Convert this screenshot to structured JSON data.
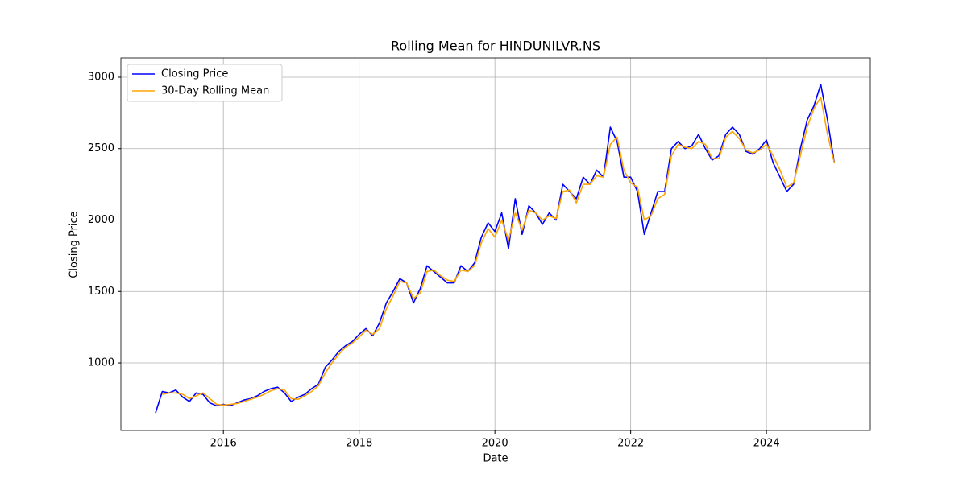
{
  "chart_data": {
    "type": "line",
    "title": "Rolling Mean for HINDUNILVR.NS",
    "x_label": "Date",
    "y_label": "Closing Price",
    "x": [
      2015.0,
      2015.1,
      2015.2,
      2015.3,
      2015.4,
      2015.5,
      2015.6,
      2015.7,
      2015.8,
      2015.9,
      2016.0,
      2016.1,
      2016.2,
      2016.3,
      2016.4,
      2016.5,
      2016.6,
      2016.7,
      2016.8,
      2016.9,
      2017.0,
      2017.1,
      2017.2,
      2017.3,
      2017.4,
      2017.5,
      2017.6,
      2017.7,
      2017.8,
      2017.9,
      2018.0,
      2018.1,
      2018.2,
      2018.3,
      2018.4,
      2018.5,
      2018.6,
      2018.7,
      2018.8,
      2018.9,
      2019.0,
      2019.1,
      2019.2,
      2019.3,
      2019.4,
      2019.5,
      2019.6,
      2019.7,
      2019.8,
      2019.9,
      2020.0,
      2020.1,
      2020.2,
      2020.3,
      2020.4,
      2020.5,
      2020.6,
      2020.7,
      2020.8,
      2020.9,
      2021.0,
      2021.1,
      2021.2,
      2021.3,
      2021.4,
      2021.5,
      2021.6,
      2021.7,
      2021.8,
      2021.9,
      2022.0,
      2022.1,
      2022.2,
      2022.3,
      2022.4,
      2022.5,
      2022.6,
      2022.7,
      2022.8,
      2022.9,
      2023.0,
      2023.1,
      2023.2,
      2023.3,
      2023.4,
      2023.5,
      2023.6,
      2023.7,
      2023.8,
      2023.9,
      2024.0,
      2024.1,
      2024.2,
      2024.3,
      2024.4,
      2024.5,
      2024.6,
      2024.7,
      2024.8,
      2024.9,
      2025.0
    ],
    "series": [
      {
        "name": "Closing Price",
        "color": "#0000ff",
        "values": [
          650,
          800,
          790,
          810,
          760,
          730,
          790,
          780,
          720,
          700,
          710,
          700,
          720,
          740,
          750,
          770,
          800,
          820,
          830,
          790,
          730,
          760,
          780,
          820,
          850,
          970,
          1020,
          1080,
          1120,
          1150,
          1200,
          1240,
          1190,
          1280,
          1420,
          1500,
          1590,
          1560,
          1420,
          1520,
          1680,
          1640,
          1600,
          1560,
          1560,
          1680,
          1640,
          1700,
          1880,
          1980,
          1920,
          2050,
          1800,
          2150,
          1900,
          2100,
          2050,
          1970,
          2050,
          2000,
          2250,
          2200,
          2150,
          2300,
          2250,
          2350,
          2300,
          2650,
          2550,
          2300,
          2300,
          2200,
          1900,
          2050,
          2200,
          2200,
          2500,
          2550,
          2500,
          2520,
          2600,
          2500,
          2420,
          2450,
          2600,
          2650,
          2600,
          2480,
          2460,
          2500,
          2560,
          2400,
          2300,
          2200,
          2250,
          2500,
          2700,
          2800,
          2950,
          2700,
          2400
        ]
      },
      {
        "name": "30-Day Rolling Mean",
        "color": "#ffa500",
        "values": [
          null,
          780,
          790,
          790,
          780,
          750,
          770,
          790,
          750,
          710,
          705,
          710,
          715,
          730,
          745,
          760,
          780,
          805,
          820,
          810,
          750,
          745,
          770,
          800,
          840,
          930,
          1000,
          1060,
          1110,
          1140,
          1180,
          1230,
          1200,
          1240,
          1380,
          1470,
          1570,
          1560,
          1450,
          1490,
          1640,
          1650,
          1610,
          1580,
          1570,
          1650,
          1640,
          1680,
          1840,
          1940,
          1880,
          2000,
          1860,
          2050,
          1930,
          2070,
          2050,
          2000,
          2030,
          2010,
          2200,
          2210,
          2120,
          2250,
          2250,
          2310,
          2300,
          2530,
          2580,
          2350,
          2260,
          2230,
          2000,
          2030,
          2150,
          2180,
          2450,
          2530,
          2510,
          2500,
          2550,
          2530,
          2430,
          2430,
          2580,
          2620,
          2570,
          2490,
          2470,
          2490,
          2530,
          2450,
          2350,
          2230,
          2260,
          2450,
          2650,
          2780,
          2860,
          2600,
          2400
        ]
      }
    ],
    "xlim": [
      2014.49,
      2025.53
    ],
    "xticks": [
      2016,
      2018,
      2020,
      2022,
      2024
    ],
    "ylim": [
      527,
      3135
    ],
    "yticks": [
      1000,
      1500,
      2000,
      2500,
      3000
    ],
    "grid": true,
    "legend": "upper left"
  }
}
